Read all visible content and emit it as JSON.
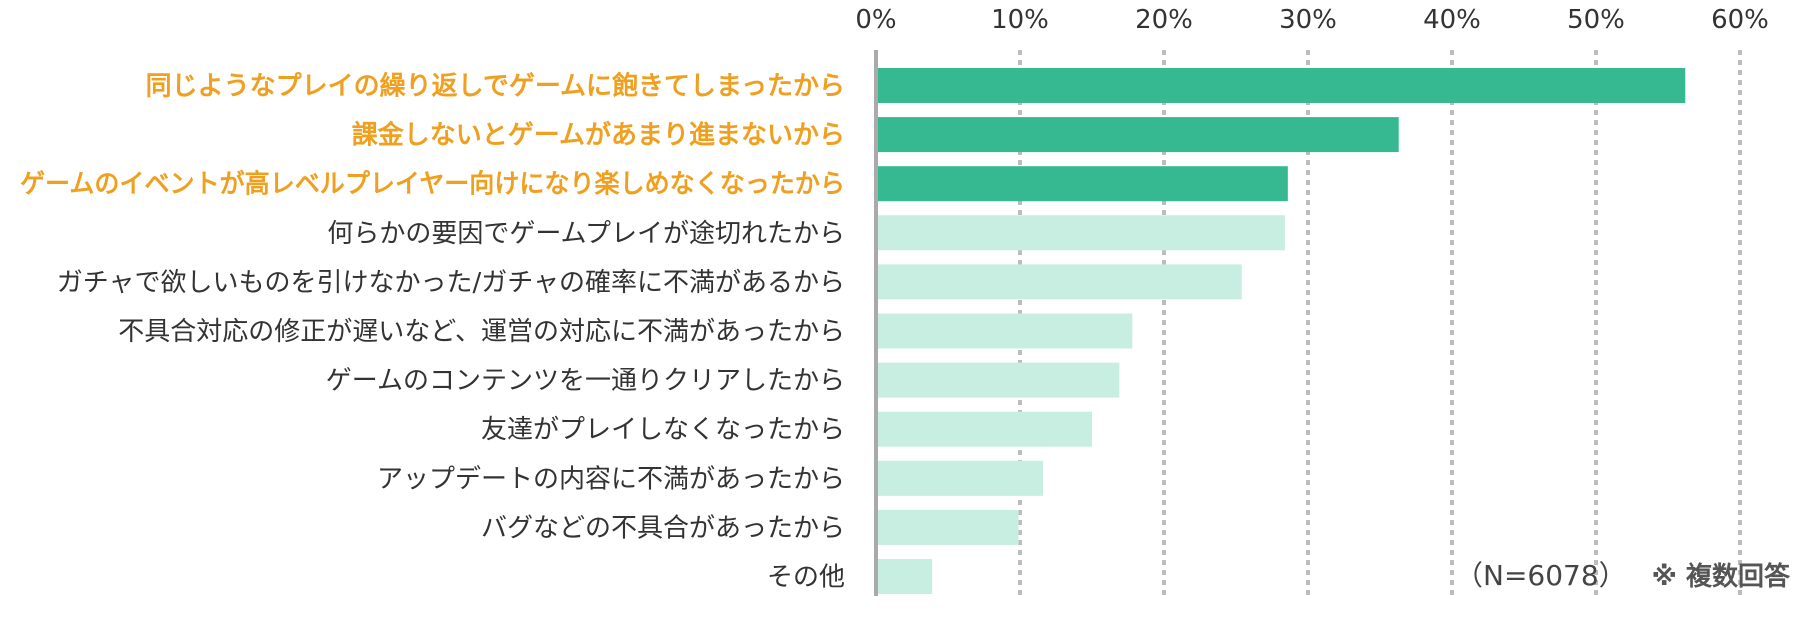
{
  "chart_data": {
    "type": "bar",
    "orientation": "horizontal",
    "categories": [
      "同じようなプレイの繰り返しでゲームに飽きてしまったから",
      "課金しないとゲームがあまり進まないから",
      "ゲームのイベントが高レベルプレイヤー向けになり楽しめなくなったから",
      "何らかの要因でゲームプレイが途切れたから",
      "ガチャで欲しいものを引けなかった/ガチャの確率に不満があるから",
      "不具合対応の修正が遅いなど、運営の対応に不満があったから",
      "ゲームのコンテンツを一通りクリアしたから",
      "友達がプレイしなくなったから",
      "アップデートの内容に不満があったから",
      "バグなどの不具合があったから",
      "その他"
    ],
    "values": [
      56.2,
      36.3,
      28.6,
      28.4,
      25.4,
      17.8,
      16.9,
      15.0,
      11.6,
      9.9,
      3.9
    ],
    "highlighted": [
      true,
      true,
      true,
      false,
      false,
      false,
      false,
      false,
      false,
      false,
      false
    ],
    "xlim": [
      0,
      60
    ],
    "xticks": [
      "0%",
      "10%",
      "20%",
      "30%",
      "40%",
      "50%",
      "60%"
    ],
    "grid": true,
    "title": "",
    "xlabel": "",
    "ylabel": "",
    "colors": {
      "highlight_bar": "#36b891",
      "normal_bar": "#c8ede1",
      "highlight_text": "#f0a020",
      "normal_text": "#333333",
      "grid": "#bdbdbd",
      "axis": "#aaaaaa"
    }
  },
  "notes": {
    "sample_size": "（N=6078）",
    "multi_answer": "※ 複数回答"
  }
}
